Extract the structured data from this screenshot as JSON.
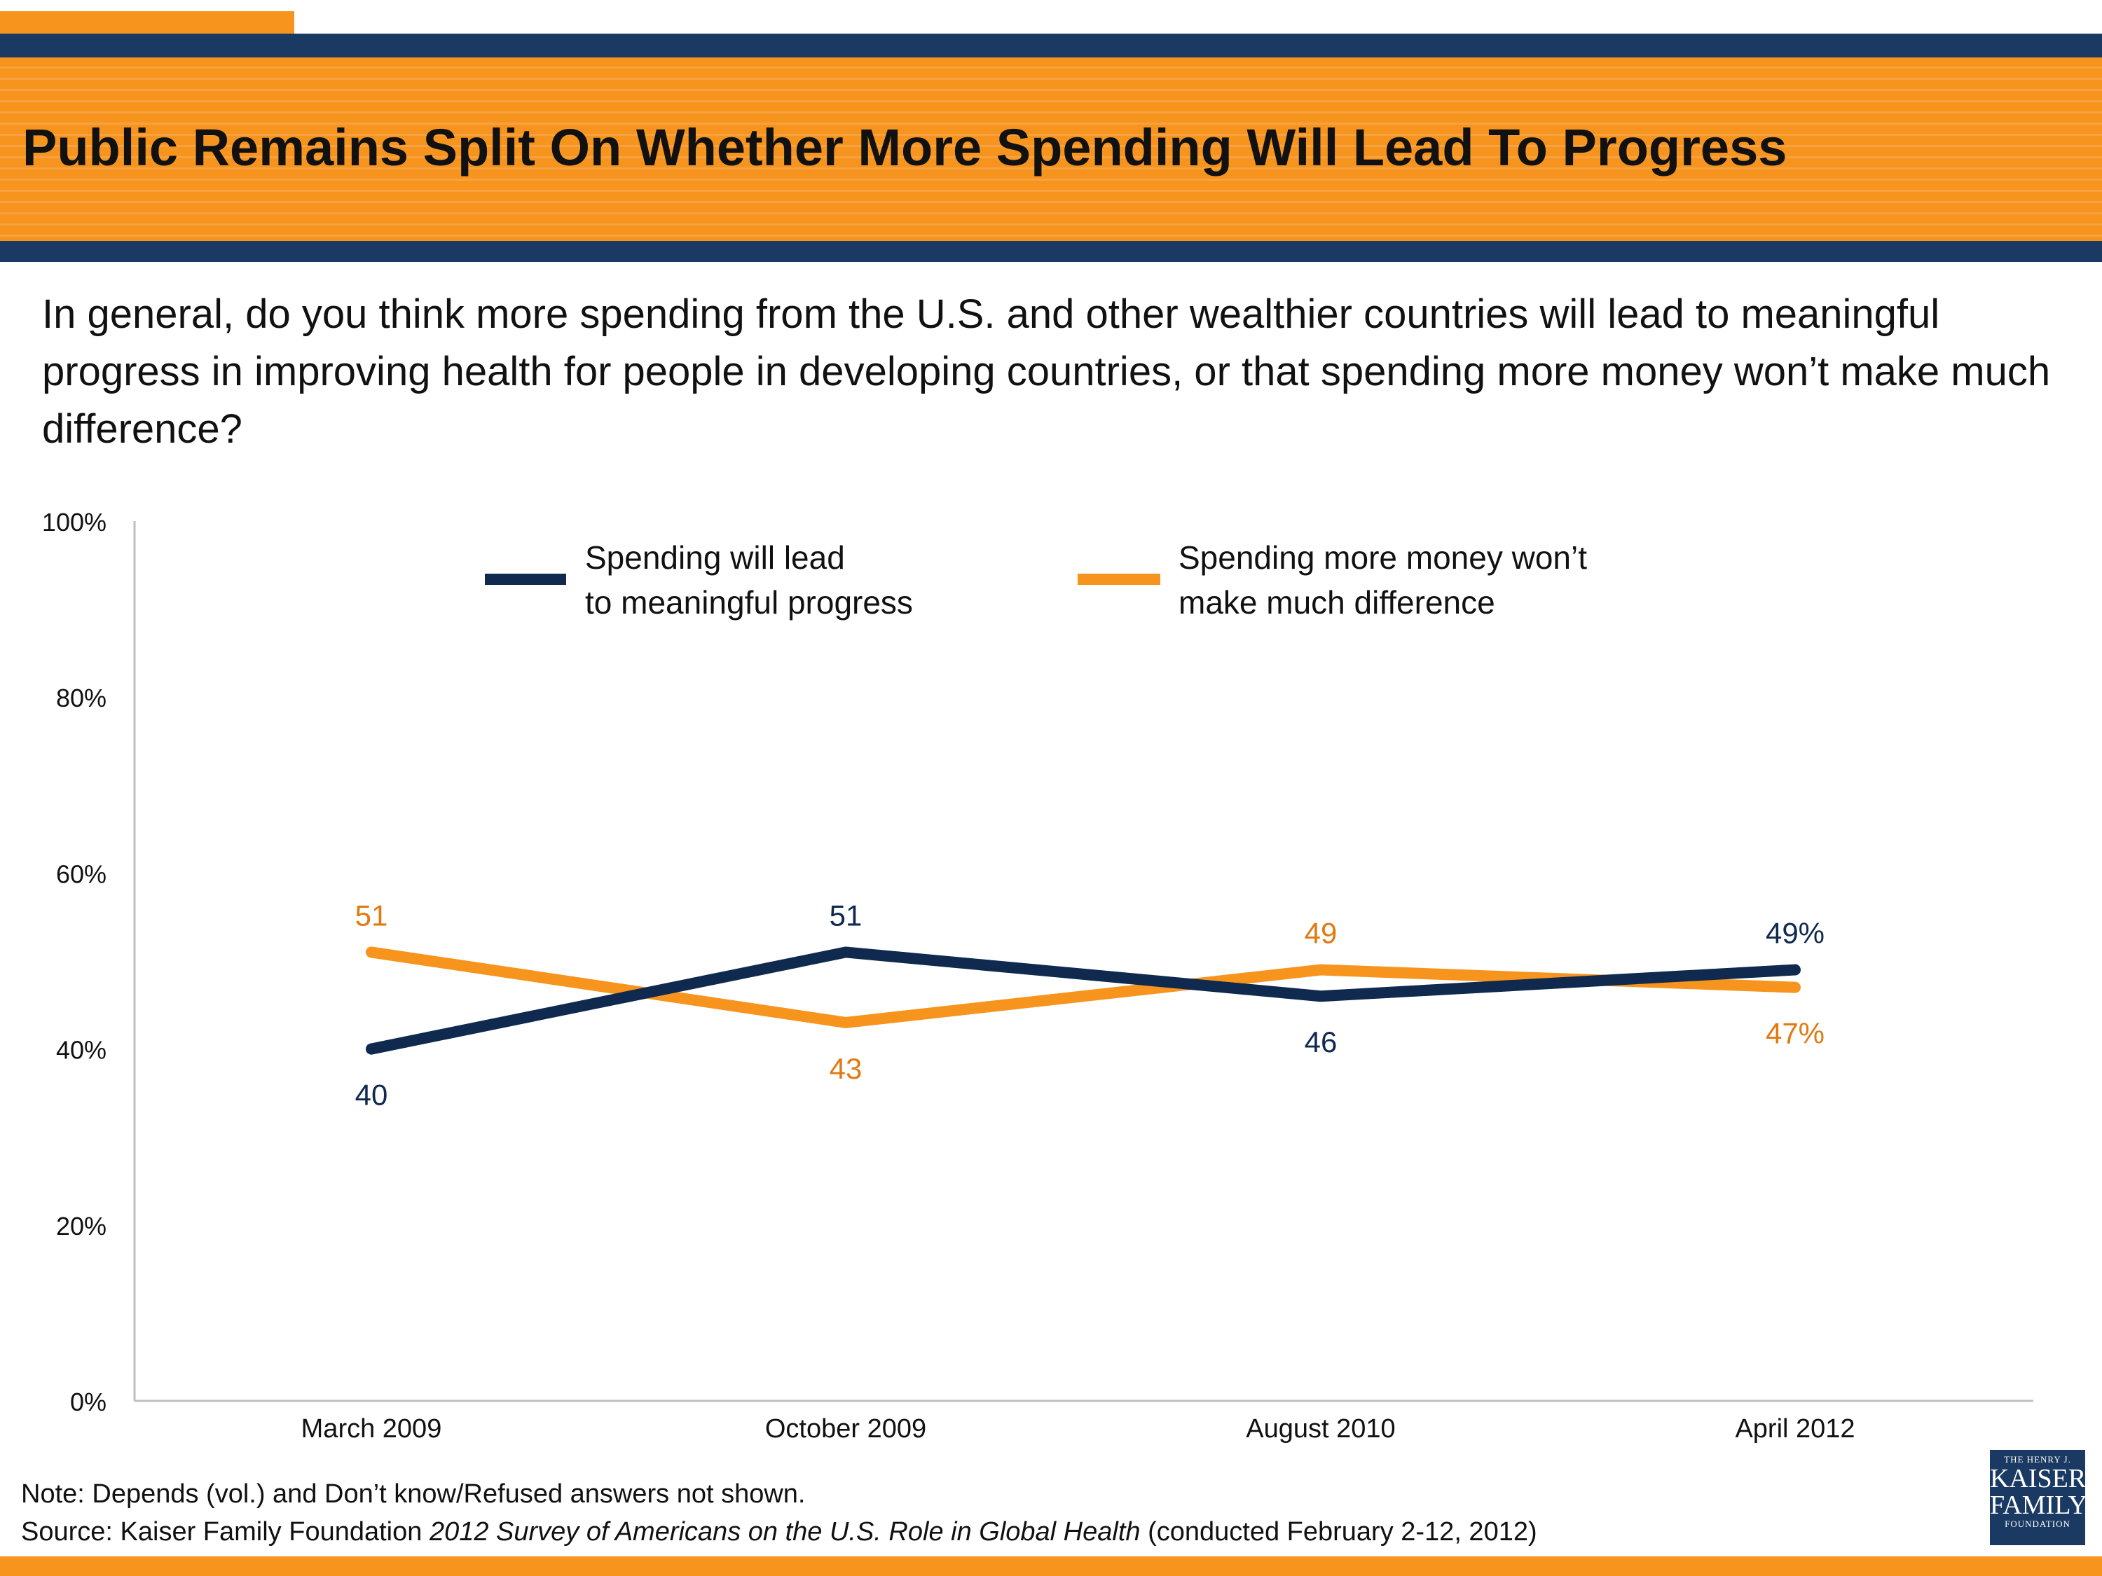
{
  "slide": {
    "title": "Public Remains Split On Whether More Spending Will Lead To Progress",
    "question": "In general, do you think more spending from the U.S. and other wealthier countries will lead to meaningful progress in improving health for people in developing countries, or that spending more money won’t make much difference?"
  },
  "footer": {
    "note": "Note: Depends (vol.) and Don’t know/Refused answers not shown.",
    "source_prefix": "Source: Kaiser Family Foundation ",
    "source_title": "2012 Survey of Americans on the U.S. Role in Global Health",
    "source_suffix": " (conducted February 2-12, 2012)"
  },
  "logo": {
    "line1": "THE HENRY J.",
    "line2": "KAISER",
    "line3": "FAMILY",
    "line4": "FOUNDATION"
  },
  "colors": {
    "navy": "#1b3a63",
    "orange": "#f7941d",
    "series_navy": "#0f2a4e",
    "label_orange": "#e07a12"
  },
  "chart_data": {
    "type": "line",
    "categories": [
      "March 2009",
      "October 2009",
      "August 2010",
      "April 2012"
    ],
    "ylim": [
      0,
      100
    ],
    "yticks": [
      "0%",
      "20%",
      "40%",
      "60%",
      "80%",
      "100%"
    ],
    "ytick_values": [
      0,
      20,
      40,
      60,
      80,
      100
    ],
    "grid": false,
    "legend_position": "top-center",
    "series": [
      {
        "name": "Spending will lead\nto meaningful progress",
        "values": [
          40,
          51,
          46,
          49
        ],
        "labels": [
          "40",
          "51",
          "46",
          "49%"
        ],
        "color": "#0f2a4e",
        "label_color": "#0f2a4e",
        "label_side": [
          "below",
          "above",
          "below",
          "above"
        ]
      },
      {
        "name": "Spending more money won’t\nmake much difference",
        "values": [
          51,
          43,
          49,
          47
        ],
        "labels": [
          "51",
          "43",
          "49",
          "47%"
        ],
        "color": "#f7941d",
        "label_color": "#e07a12",
        "label_side": [
          "above",
          "below",
          "above",
          "below"
        ]
      }
    ]
  }
}
